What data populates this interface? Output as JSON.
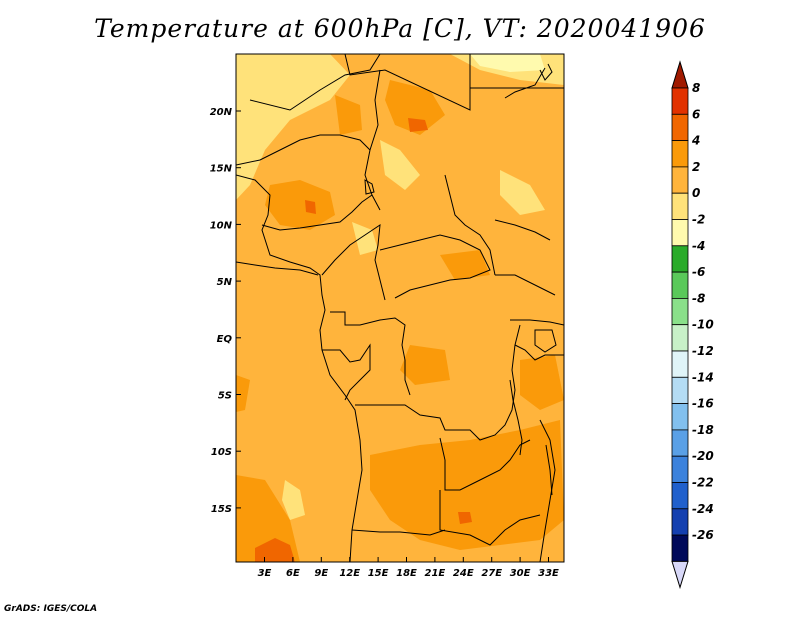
{
  "title": "Temperature at 600hPa [C], VT: 2020041906",
  "credit": "GrADS: IGES/COLA",
  "map": {
    "lat_ticks": [
      "20N",
      "15N",
      "10N",
      "5N",
      "EQ",
      "5S",
      "10S",
      "15S"
    ],
    "lon_ticks": [
      "3E",
      "6E",
      "9E",
      "12E",
      "15E",
      "18E",
      "21E",
      "24E",
      "27E",
      "30E",
      "33E"
    ]
  },
  "colorbar": {
    "labels": [
      "8",
      "6",
      "4",
      "2",
      "0",
      "-2",
      "-4",
      "-6",
      "-8",
      "-10",
      "-12",
      "-14",
      "-16",
      "-18",
      "-20",
      "-22",
      "-24",
      "-26"
    ],
    "colors": [
      "#a01a00",
      "#e23200",
      "#f06600",
      "#fa9a0a",
      "#ffb43c",
      "#ffe27a",
      "#fffaae",
      "#2aab2a",
      "#5ac95a",
      "#8ae08a",
      "#c8f0c8",
      "#e0f4f8",
      "#b4dcf4",
      "#82c0ee",
      "#5aa0e6",
      "#3c82dc",
      "#2060cc",
      "#1440b0",
      "#000a5a",
      "#d8d8f8"
    ]
  },
  "field_colors": {
    "warm_0_2": "#ffb43c",
    "warm_2_4": "#fa9a0a",
    "warm_4_6": "#f06600",
    "cool_m2_0": "#ffe27a",
    "cool_m4_m2": "#fffaae"
  }
}
